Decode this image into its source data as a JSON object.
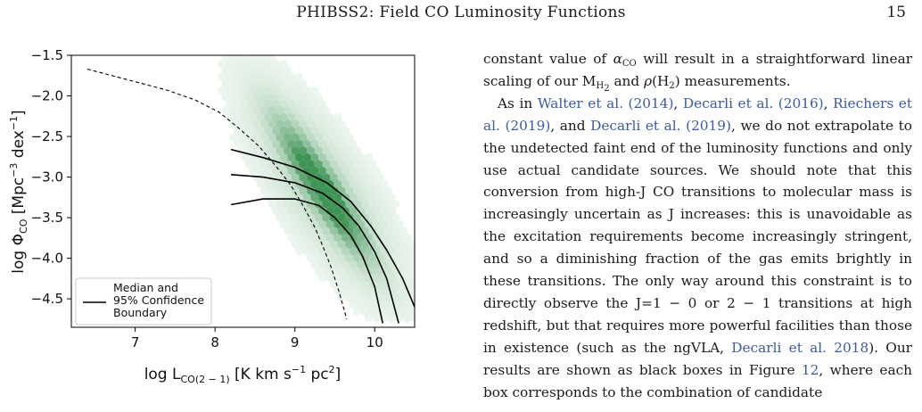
{
  "header": {
    "title": "PHIBSS2: Field CO Luminosity Functions",
    "page_number": "15"
  },
  "chart_data": {
    "type": "scatter",
    "subtype": "hexbin density with model curves",
    "xlabel": "log L_CO(2-1) [K km s^-1 pc^2]",
    "ylabel": "log Φ_CO [Mpc^-3 dex^-1]",
    "xlim": [
      6.2,
      10.5
    ],
    "ylim": [
      -4.85,
      -1.5
    ],
    "x_ticks": [
      "7",
      "8",
      "9",
      "10"
    ],
    "y_ticks": [
      "−1.5",
      "−2.0",
      "−2.5",
      "−3.0",
      "−3.5",
      "−4.0",
      "−4.5"
    ],
    "legend": {
      "placement": "lower-left",
      "entries": [
        "Median and",
        "95% Confidence",
        "Boundary"
      ]
    },
    "density_color": "#2e8b47",
    "series": [
      {
        "style": "dashed",
        "x": [
          6.4,
          6.9,
          7.4,
          7.75,
          8.05,
          8.3,
          8.55,
          8.75,
          8.95,
          9.1,
          9.25,
          9.35,
          9.45,
          9.55,
          9.65
        ],
        "y": [
          -1.67,
          -1.8,
          -1.93,
          -2.05,
          -2.2,
          -2.4,
          -2.62,
          -2.85,
          -3.1,
          -3.35,
          -3.62,
          -3.85,
          -4.1,
          -4.4,
          -4.75
        ]
      },
      {
        "style": "solid",
        "x": [
          8.2,
          8.6,
          9.0,
          9.4,
          9.7,
          9.95,
          10.15,
          10.35,
          10.5
        ],
        "y": [
          -2.66,
          -2.76,
          -2.88,
          -3.07,
          -3.3,
          -3.6,
          -3.9,
          -4.25,
          -4.6
        ]
      },
      {
        "style": "solid",
        "x": [
          8.2,
          8.6,
          9.0,
          9.35,
          9.6,
          9.8,
          10.0,
          10.15,
          10.3
        ],
        "y": [
          -2.97,
          -3.0,
          -3.07,
          -3.2,
          -3.38,
          -3.6,
          -3.92,
          -4.25,
          -4.8
        ]
      },
      {
        "style": "solid",
        "x": [
          8.2,
          8.6,
          9.0,
          9.3,
          9.5,
          9.7,
          9.85,
          10.0,
          10.1
        ],
        "y": [
          -3.34,
          -3.27,
          -3.27,
          -3.35,
          -3.5,
          -3.72,
          -3.98,
          -4.35,
          -4.8
        ]
      }
    ]
  },
  "body_text": {
    "p1_a": "constant value of ",
    "p1_alpha": "α",
    "p1_alpha_sub": "CO",
    "p1_b": " will result in a straightforward linear scaling of our M",
    "p1_h2_sub": "H",
    "p1_h2_sub2": "2",
    "p1_c": " and ",
    "p1_rho": "ρ",
    "p1_d": "(H",
    "p1_d_sub": "2",
    "p1_e": ") measurements.",
    "p2_a": "As in ",
    "cite1": "Walter et al. (2014)",
    "p2_sep1": ", ",
    "cite2": "Decarli et al. (2016)",
    "p2_sep2": ", ",
    "cite3": "Riech­ers et al. (2019)",
    "p2_sep3": ", and ",
    "cite4": "Decarli et al. (2019)",
    "p2_b": ", we do not extrapolate to the undetected faint end of the luminos­ity functions and only use actual candidate sources. We should note that this conversion from high-J CO tran­sitions to molecular mass is increasingly uncertain as J increases: this is unavoidable as the excitation require­ments become increasingly stringent, and so a diminish­ing fraction of the gas emits brightly in these transitions. The only way around this constraint is to directly ob­serve the J=1 − 0 or 2 − 1 transitions at high redshift, but that requires more powerful facilities than those in existence (such as the ngVLA, ",
    "cite5": "Decarli et al. 2018",
    "p2_c": "). Our results are shown as black boxes in Figure ",
    "cite6": "12",
    "p2_d": ", where each box corresponds to the combination of candidate"
  }
}
